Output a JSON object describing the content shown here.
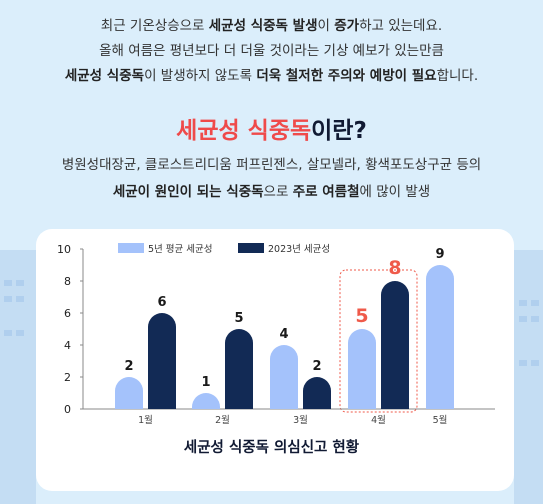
{
  "intro": {
    "line1_a": "최근 기온상승으로 ",
    "line1_b": "세균성 식중독 발생",
    "line1_c": "이 ",
    "line1_d": "증가",
    "line1_e": "하고 있는데요.",
    "line2": "올해 여름은 평년보다 더 더울 것이라는 기상 예보가 있는만큼",
    "line3_a": "세균성 식중독",
    "line3_b": "이 발생하지 않도록 ",
    "line3_c": "더욱 철저한 주의와 예방이 필요",
    "line3_d": "합니다."
  },
  "heading": {
    "red": "세균성 식중독",
    "dark": "이란?"
  },
  "sub": {
    "line1": "병원성대장균, 클로스트리디움 퍼프린젠스, 살모넬라, 황색포도상구균 등의",
    "line2_a": "세균이 원인이 되는 식중독",
    "line2_b": "으로 ",
    "line2_c": "주로 여름철",
    "line2_d": "에 많이 발생"
  },
  "colors": {
    "light": "#a4c2fb",
    "dark": "#122a55",
    "accent": "#ef5a4a",
    "bg": "#dbeefb"
  },
  "chart_data": {
    "type": "bar",
    "title": "세균성 식중독 의심신고 현황",
    "categories": [
      "1월",
      "2월",
      "3월",
      "4월",
      "5월"
    ],
    "series": [
      {
        "name": "5년 평균 세균성",
        "values": [
          2,
          1,
          4,
          5,
          9
        ]
      },
      {
        "name": "2023년 세균성",
        "values": [
          6,
          5,
          2,
          8,
          null
        ]
      }
    ],
    "yticks": [
      0,
      2,
      4,
      6,
      8,
      10
    ],
    "ylim": [
      0,
      10
    ],
    "highlight_category": "4월",
    "legend": "top-left",
    "grid": false
  }
}
